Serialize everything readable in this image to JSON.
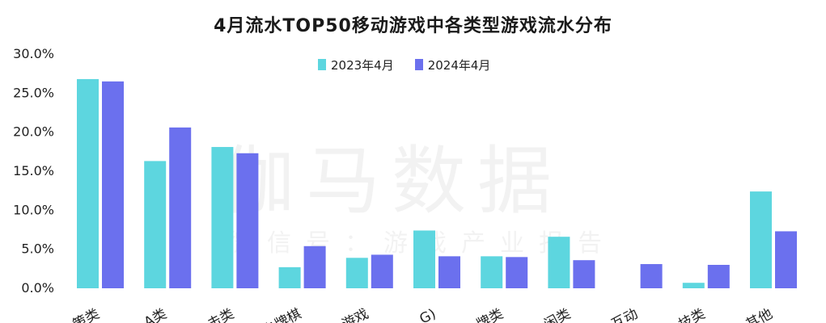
{
  "chart_data": {
    "type": "bar",
    "title": "4月流水TOP50移动游戏中各类型游戏流水分布",
    "xlabel": "",
    "ylabel": "",
    "ylim": [
      0,
      30
    ],
    "yticks": [
      "0.0%",
      "5.0%",
      "10.0%",
      "15.0%",
      "20.0%",
      "25.0%",
      "30.0%"
    ],
    "ytick_values": [
      0,
      5,
      10,
      15,
      20,
      25,
      30
    ],
    "categories": [
      "策类",
      "A类",
      "击类",
      "卡牌棋",
      "游戏",
      "G)",
      "牌类",
      "闲类",
      "互动",
      "技类",
      "其他"
    ],
    "series": [
      {
        "name": "2023年4月",
        "color": "#5dd6df",
        "values": [
          26.8,
          16.3,
          18.1,
          2.7,
          3.9,
          7.4,
          4.1,
          6.6,
          0,
          0.7,
          12.4
        ]
      },
      {
        "name": "2024年4月",
        "color": "#6b70ee",
        "values": [
          26.5,
          20.6,
          17.3,
          5.4,
          4.3,
          4.1,
          4.0,
          3.6,
          3.1,
          3.0,
          7.3
        ]
      }
    ],
    "grid": false,
    "legend_position": "top-center"
  },
  "watermark": {
    "main": "伽马数据",
    "sub": "微信号：游戏产业报告"
  }
}
